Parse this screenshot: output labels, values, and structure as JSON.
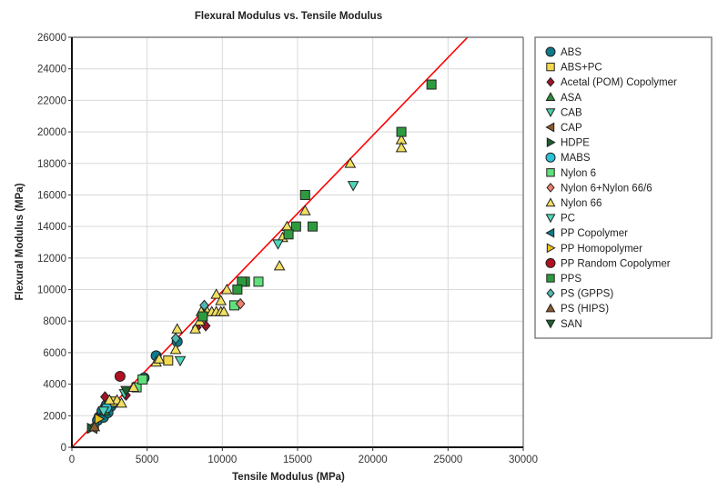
{
  "chart_data": {
    "type": "scatter",
    "title": "Flexural Modulus vs. Tensile Modulus",
    "xlabel": "Tensile Modulus (MPa)",
    "ylabel": "Flexural Modulus (MPa)",
    "xlim": [
      0,
      30000
    ],
    "ylim": [
      0,
      26000
    ],
    "xticks": [
      0,
      5000,
      10000,
      15000,
      20000,
      25000,
      30000
    ],
    "yticks": [
      0,
      2000,
      4000,
      6000,
      8000,
      10000,
      12000,
      14000,
      16000,
      18000,
      20000,
      22000,
      24000,
      26000
    ],
    "grid": true,
    "legend_position": "right",
    "reference_line": {
      "label": "y = x",
      "color": "#ff0000",
      "x": [
        0,
        26300
      ],
      "y": [
        0,
        26000
      ]
    },
    "series": [
      {
        "name": "ABS",
        "marker": "circle",
        "color": "#0e7a8a",
        "points": [
          [
            1800,
            1900
          ],
          [
            1900,
            2000
          ],
          [
            2000,
            2100
          ],
          [
            2100,
            2200
          ],
          [
            2200,
            2300
          ],
          [
            2300,
            2400
          ],
          [
            2400,
            2500
          ],
          [
            2500,
            2600
          ],
          [
            2000,
            2300
          ],
          [
            2200,
            2500
          ],
          [
            2300,
            2700
          ],
          [
            2600,
            2600
          ],
          [
            2700,
            2800
          ],
          [
            1700,
            1700
          ],
          [
            2100,
            1900
          ],
          [
            2400,
            2200
          ],
          [
            4800,
            4400
          ],
          [
            5600,
            5800
          ],
          [
            7000,
            6700
          ],
          [
            2500,
            2900
          ]
        ]
      },
      {
        "name": "ABS+PC",
        "marker": "square",
        "color": "#f2d84a",
        "points": [
          [
            6400,
            5500
          ],
          [
            2700,
            2900
          ]
        ]
      },
      {
        "name": "Acetal (POM) Copolymer",
        "marker": "diamond",
        "color": "#a01428",
        "points": [
          [
            8300,
            7600
          ],
          [
            8900,
            7700
          ],
          [
            3600,
            3300
          ],
          [
            2200,
            3200
          ]
        ]
      },
      {
        "name": "ASA",
        "marker": "triangle-up",
        "color": "#2e8b3e",
        "points": [
          [
            2200,
            2300
          ]
        ]
      },
      {
        "name": "CAB",
        "marker": "triangle-down",
        "color": "#4cc9a8",
        "points": []
      },
      {
        "name": "CAP",
        "marker": "triangle-left",
        "color": "#8b5a2b",
        "points": [
          [
            1400,
            1200
          ]
        ]
      },
      {
        "name": "HDPE",
        "marker": "triangle-right",
        "color": "#1f5f2f",
        "points": [
          [
            1300,
            1200
          ]
        ]
      },
      {
        "name": "MABS",
        "marker": "circle",
        "color": "#29c4d6",
        "points": [
          [
            2300,
            2500
          ]
        ]
      },
      {
        "name": "Nylon 6",
        "marker": "square",
        "color": "#5fe07a",
        "points": [
          [
            12400,
            10500
          ],
          [
            10800,
            9000
          ],
          [
            4300,
            3800
          ],
          [
            4700,
            4300
          ]
        ]
      },
      {
        "name": "Nylon 6+Nylon 66/6",
        "marker": "diamond",
        "color": "#f08070",
        "points": [
          [
            11200,
            9100
          ]
        ]
      },
      {
        "name": "Nylon 66",
        "marker": "triangle-up",
        "color": "#f2e060",
        "points": [
          [
            21900,
            19500
          ],
          [
            21900,
            19000
          ],
          [
            18500,
            18000
          ],
          [
            15500,
            15000
          ],
          [
            14300,
            14000
          ],
          [
            14000,
            13300
          ],
          [
            13800,
            11500
          ],
          [
            10300,
            10000
          ],
          [
            9600,
            9700
          ],
          [
            9900,
            9300
          ],
          [
            8600,
            8600
          ],
          [
            9000,
            8600
          ],
          [
            9300,
            8600
          ],
          [
            9600,
            8600
          ],
          [
            9900,
            8600
          ],
          [
            10100,
            8600
          ],
          [
            8200,
            7500
          ],
          [
            8500,
            8000
          ],
          [
            7000,
            7500
          ],
          [
            6900,
            6200
          ],
          [
            5600,
            5400
          ],
          [
            5800,
            5600
          ],
          [
            4100,
            3800
          ],
          [
            3000,
            3000
          ],
          [
            3300,
            2800
          ],
          [
            2500,
            3000
          ]
        ]
      },
      {
        "name": "PC",
        "marker": "triangle-down",
        "color": "#4fd6b8",
        "points": [
          [
            18700,
            16600
          ],
          [
            13700,
            12900
          ],
          [
            7200,
            5500
          ],
          [
            3500,
            3400
          ],
          [
            2100,
            2300
          ]
        ]
      },
      {
        "name": "PP Copolymer",
        "marker": "triangle-left",
        "color": "#0e7a8a",
        "points": [
          [
            1500,
            1400
          ]
        ]
      },
      {
        "name": "PP Homopolymer",
        "marker": "triangle-right",
        "color": "#e8c020",
        "points": [
          [
            1800,
            1800
          ]
        ]
      },
      {
        "name": "PP Random Copolymer",
        "marker": "circle",
        "color": "#b01020",
        "points": [
          [
            3200,
            4500
          ]
        ]
      },
      {
        "name": "PPS",
        "marker": "square",
        "color": "#2e9a3e",
        "points": [
          [
            23900,
            23000
          ],
          [
            21900,
            20000
          ],
          [
            15500,
            16000
          ],
          [
            14900,
            14000
          ],
          [
            16000,
            14000
          ],
          [
            14400,
            13500
          ],
          [
            11500,
            10500
          ],
          [
            11300,
            10500
          ],
          [
            11000,
            10000
          ],
          [
            8700,
            8300
          ]
        ]
      },
      {
        "name": "PS (GPPS)",
        "marker": "diamond",
        "color": "#4fb8b0",
        "points": [
          [
            8800,
            9000
          ],
          [
            6900,
            6900
          ]
        ]
      },
      {
        "name": "PS (HIPS)",
        "marker": "triangle-up",
        "color": "#8b5a2b",
        "points": [
          [
            1500,
            1300
          ]
        ]
      },
      {
        "name": "SAN",
        "marker": "triangle-down",
        "color": "#1f5f2f",
        "points": [
          [
            3600,
            3600
          ]
        ]
      }
    ]
  },
  "legend": {
    "items": [
      {
        "label": "ABS"
      },
      {
        "label": "ABS+PC"
      },
      {
        "label": "Acetal (POM) Copolymer"
      },
      {
        "label": "ASA"
      },
      {
        "label": "CAB"
      },
      {
        "label": "CAP"
      },
      {
        "label": "HDPE"
      },
      {
        "label": "MABS"
      },
      {
        "label": "Nylon 6"
      },
      {
        "label": "Nylon 6+Nylon 66/6"
      },
      {
        "label": "Nylon 66"
      },
      {
        "label": "PC"
      },
      {
        "label": "PP Copolymer"
      },
      {
        "label": "PP Homopolymer"
      },
      {
        "label": "PP Random Copolymer"
      },
      {
        "label": "PPS"
      },
      {
        "label": "PS (GPPS)"
      },
      {
        "label": "PS (HIPS)"
      },
      {
        "label": "SAN"
      }
    ]
  }
}
